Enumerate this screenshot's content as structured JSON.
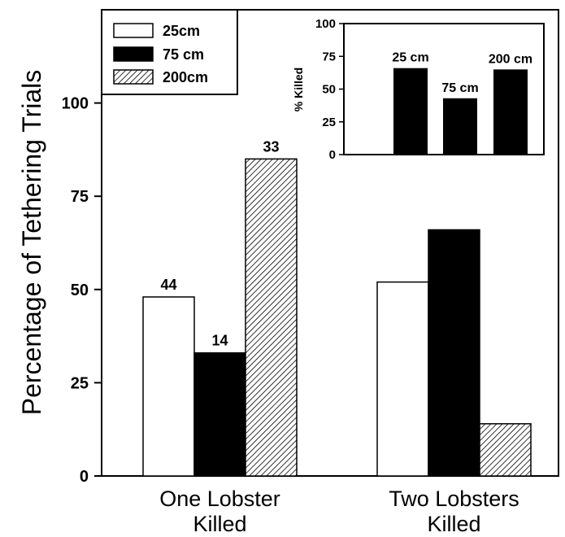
{
  "chart_data": [
    {
      "type": "bar",
      "ylabel": "Percentage of Tethering Trials",
      "categories": [
        "One Lobster Killed",
        "Two Lobsters Killed"
      ],
      "category_lines": [
        [
          "One Lobster",
          "Killed"
        ],
        [
          "Two Lobsters",
          "Killed"
        ]
      ],
      "series": [
        {
          "name": "25cm",
          "values": [
            48,
            52
          ],
          "data_labels": [
            "44",
            ""
          ],
          "color": "#ffffff"
        },
        {
          "name": "75 cm",
          "values": [
            33,
            66
          ],
          "data_labels": [
            "14",
            ""
          ],
          "color": "#000000"
        },
        {
          "name": "200cm",
          "values": [
            85,
            14
          ],
          "data_labels": [
            "33",
            ""
          ],
          "color": "hatched"
        }
      ],
      "ylim": [
        0,
        125
      ],
      "yticks": [
        0,
        25,
        50,
        75,
        100
      ],
      "grid": false,
      "legend": "top-left"
    },
    {
      "type": "bar",
      "ylabel": "% Killed",
      "categories": [
        "25 cm",
        "75 cm",
        "200 cm"
      ],
      "values": [
        66,
        43,
        65
      ],
      "ylim": [
        0,
        100
      ],
      "yticks": [
        0,
        25,
        50,
        75,
        100
      ],
      "color": "#000000",
      "grid": false
    }
  ]
}
